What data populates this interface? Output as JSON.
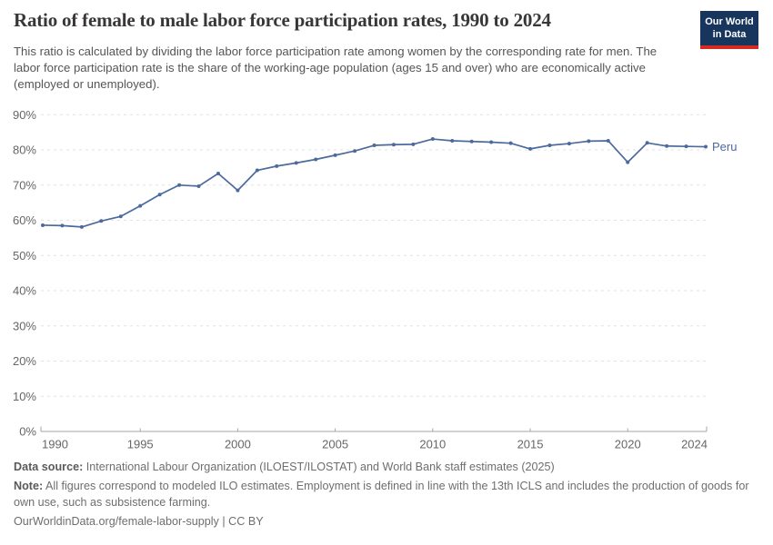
{
  "header": {
    "title": "Ratio of female to male labor force participation rates, 1990 to 2024",
    "subtitle": "This ratio is calculated by dividing the labor force participation rate among women by the corresponding rate for men. The labor force participation rate is the share of the working-age population (ages 15 and over) who are economically active (employed or unemployed).",
    "logo_line1": "Our World",
    "logo_line2": "in Data"
  },
  "chart_data": {
    "type": "line",
    "title": "Ratio of female to male labor force participation rates, 1990 to 2024",
    "x": [
      1990,
      1991,
      1992,
      1993,
      1994,
      1995,
      1996,
      1997,
      1998,
      1999,
      2000,
      2001,
      2002,
      2003,
      2004,
      2005,
      2006,
      2007,
      2008,
      2009,
      2010,
      2011,
      2012,
      2013,
      2014,
      2015,
      2016,
      2017,
      2018,
      2019,
      2020,
      2021,
      2022,
      2023,
      2024
    ],
    "series": [
      {
        "name": "Peru",
        "color": "#4C6A9C",
        "values": [
          58.6,
          58.5,
          58.1,
          59.8,
          61.1,
          64.1,
          67.3,
          70.0,
          69.7,
          73.3,
          68.5,
          74.2,
          75.4,
          76.3,
          77.3,
          78.5,
          79.7,
          81.3,
          81.5,
          81.6,
          83.1,
          82.6,
          82.4,
          82.2,
          81.9,
          80.3,
          81.3,
          81.8,
          82.5,
          82.6,
          76.5,
          82.0,
          81.1,
          81.0,
          80.9
        ]
      }
    ],
    "x_ticks": [
      1990,
      1995,
      2000,
      2005,
      2010,
      2015,
      2020,
      2024
    ],
    "y_ticks": [
      0,
      10,
      20,
      30,
      40,
      50,
      60,
      70,
      80,
      90
    ],
    "y_tick_suffix": "%",
    "xlim": [
      1990,
      2024
    ],
    "ylim": [
      0,
      90
    ],
    "grid": "horizontal-dashed",
    "legend": "end-of-line-label",
    "xlabel": "",
    "ylabel": ""
  },
  "footer": {
    "datasource_label": "Data source:",
    "datasource_text": " International Labour Organization (ILOEST/ILOSTAT) and World Bank staff estimates (2025)",
    "note_label": "Note:",
    "note_text": " All figures correspond to modeled ILO estimates. Employment is defined in line with the 13th ICLS and includes the production of goods for own use, such as subsistence farming.",
    "link": "OurWorldinData.org/female-labor-supply",
    "license_suffix": " | CC BY"
  },
  "colors": {
    "series_blue": "#4C6A9C",
    "logo_navy": "#18355E",
    "logo_red": "#D42B21",
    "title_text": "#383636",
    "subtitle_text": "#555555",
    "tick_text": "#666666",
    "gridline": "#E2E2E2",
    "axis": "#A6A6A6",
    "footer_text": "#6E6E6E"
  }
}
